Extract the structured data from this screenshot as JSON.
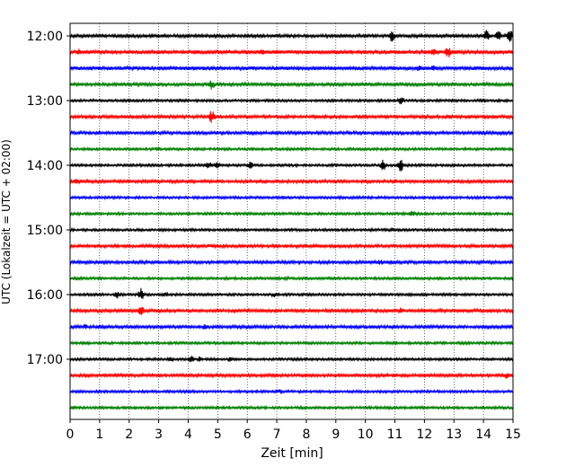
{
  "chart_data": {
    "type": "line",
    "title": "",
    "xlabel": "Zeit  [min]",
    "ylabel": "UTC (Lokalzeit = UTC + 02:00)",
    "xlim": [
      0,
      15
    ],
    "x_ticks": [
      "0",
      "1",
      "2",
      "3",
      "4",
      "5",
      "6",
      "7",
      "8",
      "9",
      "10",
      "11",
      "12",
      "13",
      "14",
      "15"
    ],
    "y_tick_labels": [
      "12:00",
      "13:00",
      "14:00",
      "15:00",
      "16:00",
      "17:00"
    ],
    "grid_vertical": true,
    "trace_interval_minutes": 15,
    "colors": [
      "#000000",
      "#ff0000",
      "#0000ff",
      "#008000"
    ],
    "traces": [
      {
        "start": "12:00",
        "color": "#000000",
        "amplitude": 0.25,
        "events": [
          {
            "x": 10.9,
            "amp": 0.9
          },
          {
            "x": 14.1,
            "amp": 0.9
          },
          {
            "x": 14.5,
            "amp": 0.85
          },
          {
            "x": 14.9,
            "amp": 0.95
          }
        ]
      },
      {
        "start": "12:15",
        "color": "#ff0000",
        "amplitude": 0.3,
        "events": [
          {
            "x": 0.3,
            "amp": 0.6
          },
          {
            "x": 5.3,
            "amp": 0.4
          },
          {
            "x": 6.5,
            "amp": 0.5
          },
          {
            "x": 12.3,
            "amp": 0.8
          },
          {
            "x": 12.8,
            "amp": 0.9
          }
        ]
      },
      {
        "start": "12:30",
        "color": "#0000ff",
        "amplitude": 0.3,
        "events": [
          {
            "x": 11.8,
            "amp": 0.55
          },
          {
            "x": 12.3,
            "amp": 0.5
          }
        ]
      },
      {
        "start": "12:45",
        "color": "#008000",
        "amplitude": 0.25,
        "events": [
          {
            "x": 4.8,
            "amp": 0.8
          }
        ]
      },
      {
        "start": "13:00",
        "color": "#000000",
        "amplitude": 0.2,
        "events": [
          {
            "x": 11.2,
            "amp": 0.6
          }
        ]
      },
      {
        "start": "13:15",
        "color": "#ff0000",
        "amplitude": 0.25,
        "events": [
          {
            "x": 4.8,
            "amp": 1.0
          },
          {
            "x": 12.8,
            "amp": 0.4
          }
        ]
      },
      {
        "start": "13:30",
        "color": "#0000ff",
        "amplitude": 0.25,
        "events": [
          {
            "x": 14.6,
            "amp": 0.4
          }
        ]
      },
      {
        "start": "13:45",
        "color": "#008000",
        "amplitude": 0.2,
        "events": [
          {
            "x": 3.0,
            "amp": 0.35
          }
        ]
      },
      {
        "start": "14:00",
        "color": "#000000",
        "amplitude": 0.2,
        "events": [
          {
            "x": 4.7,
            "amp": 0.6
          },
          {
            "x": 5.0,
            "amp": 0.5
          },
          {
            "x": 6.1,
            "amp": 0.6
          },
          {
            "x": 10.6,
            "amp": 0.85
          },
          {
            "x": 11.2,
            "amp": 0.95
          }
        ]
      },
      {
        "start": "14:15",
        "color": "#ff0000",
        "amplitude": 0.25,
        "events": [
          {
            "x": 0.2,
            "amp": 0.5
          },
          {
            "x": 6.6,
            "amp": 0.4
          },
          {
            "x": 11.0,
            "amp": 0.4
          }
        ]
      },
      {
        "start": "14:30",
        "color": "#0000ff",
        "amplitude": 0.2,
        "events": [
          {
            "x": 7.2,
            "amp": 0.3
          }
        ]
      },
      {
        "start": "14:45",
        "color": "#008000",
        "amplitude": 0.2,
        "events": [
          {
            "x": 11.6,
            "amp": 0.6
          }
        ]
      },
      {
        "start": "15:00",
        "color": "#000000",
        "amplitude": 0.2,
        "events": [
          {
            "x": 10.9,
            "amp": 0.35
          }
        ]
      },
      {
        "start": "15:15",
        "color": "#ff0000",
        "amplitude": 0.25,
        "events": [
          {
            "x": 4.7,
            "amp": 0.35
          },
          {
            "x": 8.4,
            "amp": 0.35
          }
        ]
      },
      {
        "start": "15:30",
        "color": "#0000ff",
        "amplitude": 0.25,
        "events": [
          {
            "x": 10.5,
            "amp": 0.55
          },
          {
            "x": 10.9,
            "amp": 0.4
          }
        ]
      },
      {
        "start": "15:45",
        "color": "#008000",
        "amplitude": 0.2,
        "events": [
          {
            "x": 0.2,
            "amp": 0.3
          },
          {
            "x": 7.3,
            "amp": 0.35
          }
        ]
      },
      {
        "start": "16:00",
        "color": "#000000",
        "amplitude": 0.2,
        "events": [
          {
            "x": 1.6,
            "amp": 0.6
          },
          {
            "x": 2.4,
            "amp": 1.0
          },
          {
            "x": 3.2,
            "amp": 0.5
          },
          {
            "x": 6.9,
            "amp": 0.4
          }
        ]
      },
      {
        "start": "16:15",
        "color": "#ff0000",
        "amplitude": 0.25,
        "events": [
          {
            "x": 2.4,
            "amp": 0.9
          },
          {
            "x": 11.2,
            "amp": 0.5
          },
          {
            "x": 12.1,
            "amp": 0.4
          }
        ]
      },
      {
        "start": "16:30",
        "color": "#0000ff",
        "amplitude": 0.25,
        "events": [
          {
            "x": 0.5,
            "amp": 0.5
          },
          {
            "x": 4.6,
            "amp": 0.6
          }
        ]
      },
      {
        "start": "16:45",
        "color": "#008000",
        "amplitude": 0.2,
        "events": [
          {
            "x": 5.5,
            "amp": 0.3
          }
        ]
      },
      {
        "start": "17:00",
        "color": "#000000",
        "amplitude": 0.2,
        "events": [
          {
            "x": 3.4,
            "amp": 0.45
          },
          {
            "x": 4.1,
            "amp": 0.55
          },
          {
            "x": 4.4,
            "amp": 0.5
          },
          {
            "x": 5.4,
            "amp": 0.4
          }
        ]
      },
      {
        "start": "17:15",
        "color": "#ff0000",
        "amplitude": 0.25,
        "events": [
          {
            "x": 14.8,
            "amp": 0.6
          },
          {
            "x": 11.0,
            "amp": 0.3
          }
        ]
      },
      {
        "start": "17:30",
        "color": "#0000ff",
        "amplitude": 0.2,
        "events": [
          {
            "x": 7.1,
            "amp": 0.4
          }
        ]
      },
      {
        "start": "17:45",
        "color": "#008000",
        "amplitude": 0.2,
        "events": [
          {
            "x": 0.1,
            "amp": 0.3
          }
        ]
      }
    ]
  }
}
